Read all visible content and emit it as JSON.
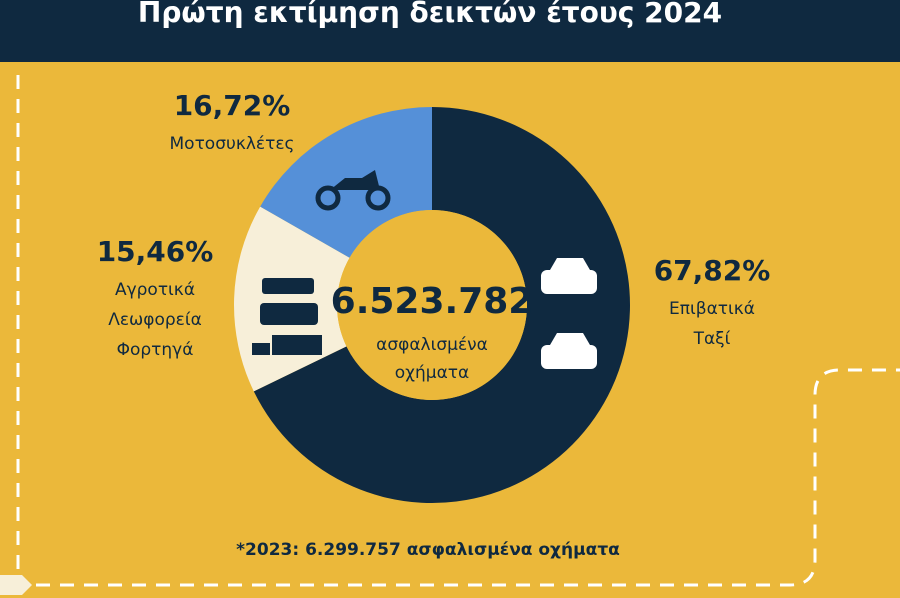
{
  "chart_data": {
    "type": "donut",
    "title": "Πρώτη εκτίμηση δεικτών έτους 2024",
    "categories": [
      [
        "Επιβατικά",
        "Ταξί"
      ],
      [
        "Αγροτικά",
        "Λεωφορεία",
        "Φορτηγά"
      ],
      [
        "Μοτοσυκλέτες"
      ]
    ],
    "values": [
      67.82,
      15.46,
      16.72
    ],
    "value_labels": [
      "67,82%",
      "15,46%",
      "16,72%"
    ],
    "colors": [
      "#0f2940",
      "#f7efd9",
      "#5590d8"
    ],
    "total": {
      "value": 6523782,
      "label": "6.523.782"
    },
    "total_caption": [
      "ασφαλισμένα",
      "οχήματα"
    ],
    "note": "*2023:  6.299.757 ασφαλισμένα οχήματα"
  }
}
